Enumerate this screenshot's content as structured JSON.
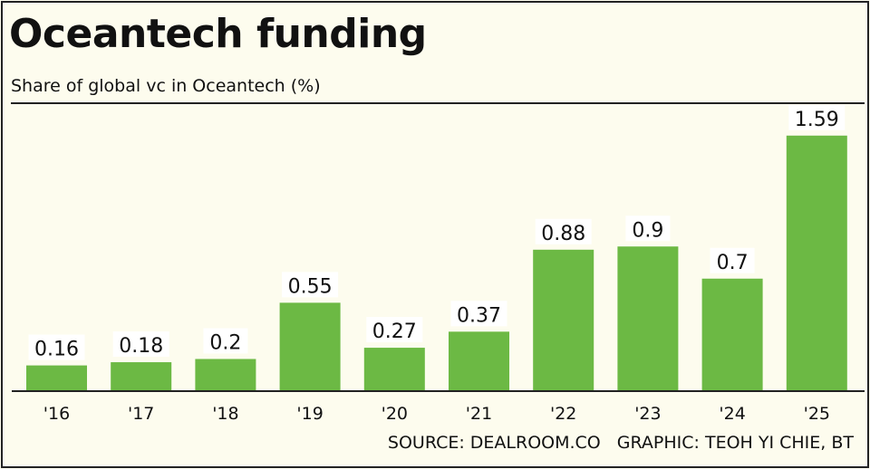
{
  "chart_data": {
    "type": "bar",
    "title": "Oceantech funding",
    "subtitle": "Share of global vc in Oceantech (%)",
    "categories": [
      "'16",
      "'17",
      "'18",
      "'19",
      "'20",
      "'21",
      "'22",
      "'23",
      "'24",
      "'25"
    ],
    "values": [
      0.16,
      0.18,
      0.2,
      0.55,
      0.27,
      0.37,
      0.88,
      0.9,
      0.7,
      1.59
    ],
    "value_labels": [
      "0.16",
      "0.18",
      "0.2",
      "0.55",
      "0.27",
      "0.37",
      "0.88",
      "0.9",
      "0.7",
      "1.59"
    ],
    "xlabel": "",
    "ylabel": "",
    "ylim": [
      0,
      1.6
    ],
    "grid": false,
    "bar_color": "#6cb944",
    "source": "SOURCE: DEALROOM.CO",
    "credit": "GRAPHIC: TEOH YI CHIE, BT"
  }
}
